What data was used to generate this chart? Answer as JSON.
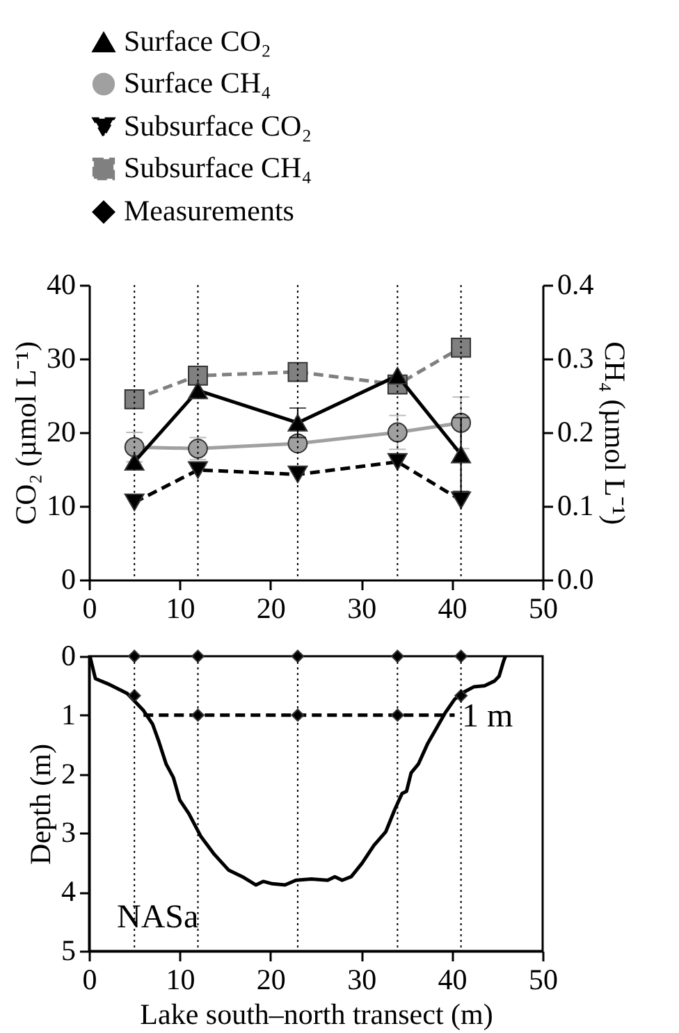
{
  "chart_data": [
    {
      "type": "line",
      "ylabel": "CO₂ (µmol L⁻¹)",
      "y2label": "CH₄ (µmol L⁻¹)",
      "legend": "top",
      "x": [
        5,
        12,
        23,
        34,
        41
      ],
      "xlim": [
        0,
        50
      ],
      "xticks": [
        0,
        10,
        20,
        30,
        40,
        50
      ],
      "ylim": [
        0,
        40
      ],
      "yticks": [
        0,
        10,
        20,
        30,
        40
      ],
      "y2lim": [
        0,
        0.4
      ],
      "y2ticks": [
        {
          "value": 0,
          "label": "0.0"
        },
        0.1,
        0.2,
        0.3,
        0.4
      ],
      "series": [
        {
          "name": "Surface CO₂",
          "color": "#000000",
          "marker": "triangle",
          "line_style": "solid",
          "values": [
            16,
            25.7,
            21.3,
            27.7,
            17
          ],
          "errors": [
            null,
            null,
            2,
            null,
            5
          ]
        },
        {
          "name": "Surface CH₄",
          "color": "#a0a0a0",
          "marker": "circle",
          "line_style": "solid",
          "axis": "y2",
          "values": [
            0.18,
            0.178,
            0.185,
            0.2,
            0.213
          ],
          "errors": [
            0.02,
            0.015,
            null,
            0.023,
            0.035
          ]
        },
        {
          "name": "Subsurface CO₂",
          "color": "#000000",
          "marker": "triangle-down",
          "line_style": "dashed",
          "values": [
            10.5,
            14.9,
            14.3,
            16,
            10.8
          ]
        },
        {
          "name": "Subsurface CH₄",
          "color": "#808080",
          "marker": "square",
          "line_style": "dashed",
          "axis": "y2",
          "values": [
            0.245,
            0.277,
            0.282,
            0.265,
            0.315
          ]
        }
      ],
      "ref_lines": [
        {
          "axis": "x",
          "value": 5,
          "color": "#000000",
          "line_style": "dotted"
        },
        {
          "axis": "x",
          "value": 12,
          "color": "#000000",
          "line_style": "dotted"
        },
        {
          "axis": "x",
          "value": 23,
          "color": "#000000",
          "line_style": "dotted"
        },
        {
          "axis": "x",
          "value": 34,
          "color": "#000000",
          "line_style": "dotted"
        },
        {
          "axis": "x",
          "value": 41,
          "color": "#000000",
          "line_style": "dotted"
        }
      ]
    },
    {
      "type": "line",
      "xlabel": "Lake south–north transect (m)",
      "ylabel": "Depth (m)",
      "xlim": [
        0,
        50
      ],
      "xticks": [
        0,
        10,
        20,
        30,
        40,
        50
      ],
      "ylim": [
        5,
        0
      ],
      "yticks": [
        0,
        1,
        2,
        3,
        4,
        5
      ],
      "series": [
        {
          "color": "#000000",
          "marker": "none",
          "line_style": "solid",
          "x": [
            0.1,
            0.7,
            2.1,
            4.2,
            6,
            7,
            7.7,
            8.5,
            9.3,
            10,
            11,
            12.3,
            13.8,
            15.4,
            16.9,
            18.4,
            19.2,
            20.2,
            21.6,
            22.8,
            24.5,
            26.3,
            27.1,
            27.9,
            28.9,
            30.1,
            31.4,
            32.7,
            33.7,
            34.5,
            35,
            35.5,
            36.3,
            37.3,
            38.3,
            39.3,
            40.3,
            41.3,
            42.4,
            43.6,
            44.7,
            45.2,
            45.7,
            45.9
          ],
          "values": [
            0,
            0.38,
            0.47,
            0.63,
            0.92,
            1.15,
            1.45,
            1.83,
            2.06,
            2.44,
            2.67,
            3.05,
            3.36,
            3.63,
            3.74,
            3.88,
            3.82,
            3.86,
            3.88,
            3.8,
            3.78,
            3.8,
            3.74,
            3.8,
            3.74,
            3.51,
            3.21,
            2.98,
            2.6,
            2.33,
            2.29,
            1.98,
            1.83,
            1.49,
            1.22,
            0.95,
            0.73,
            0.61,
            0.52,
            0.5,
            0.42,
            0.34,
            0.08,
            0
          ]
        },
        {
          "color": "#000000",
          "marker": "none",
          "line_style": "dashed",
          "x": [
            6,
            40.3
          ],
          "values": [
            1,
            1
          ]
        },
        {
          "name": "Measurements",
          "type": "scatter",
          "color": "#000000",
          "marker": "diamond",
          "x": [
            5,
            12,
            23,
            34,
            41,
            5,
            12,
            23,
            34,
            41
          ],
          "values": [
            0,
            0,
            0,
            0,
            0,
            0.67,
            1,
            1,
            1,
            0.67
          ]
        }
      ],
      "ref_lines": [
        {
          "axis": "x",
          "value": 5,
          "color": "#000000",
          "line_style": "dotted"
        },
        {
          "axis": "x",
          "value": 12,
          "color": "#000000",
          "line_style": "dotted"
        },
        {
          "axis": "x",
          "value": 23,
          "color": "#000000",
          "line_style": "dotted"
        },
        {
          "axis": "x",
          "value": 34,
          "color": "#000000",
          "line_style": "dotted"
        },
        {
          "axis": "x",
          "value": 41,
          "color": "#000000",
          "line_style": "dotted"
        }
      ],
      "annotations": [
        "NASa",
        "1 m"
      ]
    }
  ]
}
